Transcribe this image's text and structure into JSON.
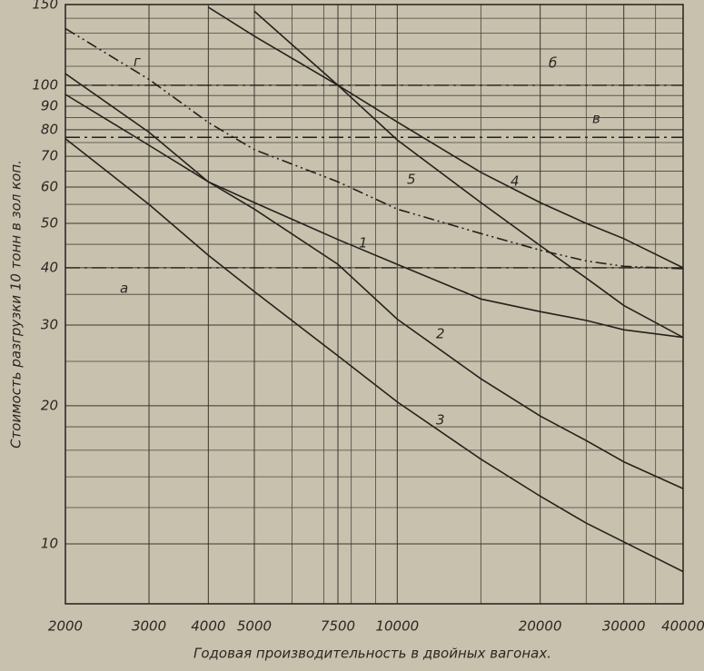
{
  "chart_data": {
    "type": "line",
    "x_label": "Годовая производительность в двойных вагонах.",
    "y_label": "Стоимость разгрузки 10 тонн в зол коп.",
    "log_x": true,
    "log_y": true,
    "grid": true,
    "xlim": [
      2000,
      40000
    ],
    "ylim": [
      7.4,
      150
    ],
    "xticks": [
      2000,
      3000,
      4000,
      5000,
      7500,
      10000,
      20000,
      30000,
      40000
    ],
    "minor_xticks": [
      6000,
      7000,
      8000,
      9000,
      15000,
      25000,
      35000
    ],
    "yticks": [
      10,
      20,
      30,
      40,
      50,
      60,
      70,
      80,
      90,
      100,
      150
    ],
    "minor_yticks": [
      12,
      14,
      16,
      18,
      25,
      35,
      45,
      55,
      65,
      75,
      85,
      95,
      110,
      120,
      130,
      140
    ],
    "x": [
      2000,
      3000,
      4000,
      5000,
      7500,
      10000,
      15000,
      20000,
      25000,
      30000,
      40000
    ],
    "series": [
      {
        "name": "1",
        "color": "#24211d",
        "style": "solid",
        "values": [
          106,
          79,
          61.6,
          55.5,
          46.1,
          40.7,
          34.2,
          32.1,
          30.7,
          29.3,
          28.2
        ]
      },
      {
        "name": "2",
        "color": "#24211d",
        "style": "solid",
        "values": [
          95.5,
          74,
          61.6,
          53.7,
          40.7,
          30.9,
          22.9,
          19,
          16.8,
          15.1,
          13.2
        ]
      },
      {
        "name": "3",
        "color": "#24211d",
        "style": "solid",
        "values": [
          76.5,
          55,
          42.6,
          35.5,
          25.7,
          20.4,
          15.3,
          12.7,
          11.1,
          10.1,
          8.7
        ]
      },
      {
        "name": "4",
        "color": "#24211d",
        "style": "solid",
        "values": [
          null,
          null,
          null,
          145,
          100,
          83.2,
          64.6,
          55.5,
          50,
          46.3,
          40
        ]
      },
      {
        "name": "5",
        "color": "#24211d",
        "style": "solid",
        "values": [
          null,
          null,
          148,
          128,
          100,
          76,
          55.5,
          44.7,
          38,
          33.1,
          28.2
        ]
      },
      {
        "name": "г",
        "color": "#24211d",
        "style": "dashdotdot",
        "values": [
          133,
          103,
          83,
          72.4,
          61.6,
          53.7,
          47.5,
          43.7,
          41.4,
          40.3,
          39.8
        ]
      }
    ],
    "hlines": [
      {
        "name": "а",
        "value": 40,
        "style": "dashdot"
      },
      {
        "name": "б",
        "value": 100,
        "style": "dashdot"
      },
      {
        "name": "в",
        "value": 77,
        "style": "dashdot"
      }
    ]
  }
}
